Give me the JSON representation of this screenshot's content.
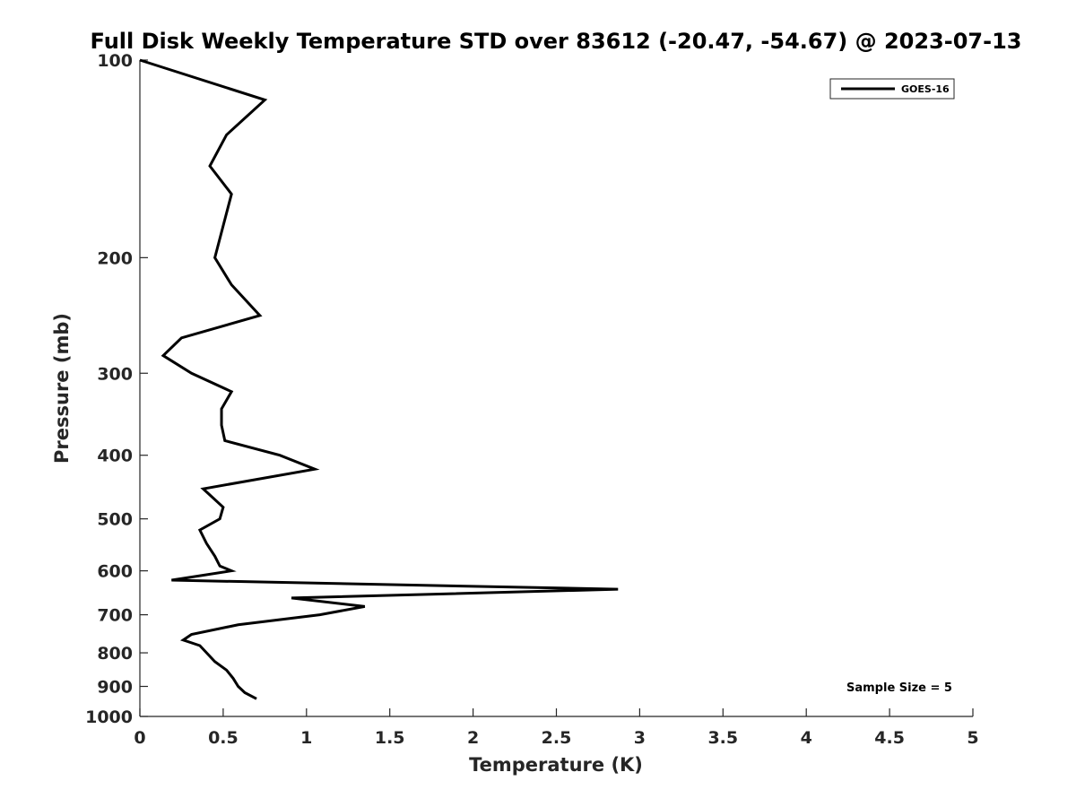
{
  "chart_data": {
    "type": "line",
    "title": "Full Disk Weekly Temperature STD over 83612 (-20.47, -54.67) @ 2023-07-13",
    "xlabel": "Temperature (K)",
    "ylabel": "Pressure (mb)",
    "xlim": [
      0,
      5
    ],
    "ylim": [
      100,
      1000
    ],
    "y_scale": "log",
    "y_reversed": true,
    "grid": false,
    "legend_position": "top-right",
    "x_ticks": [
      {
        "value": 0,
        "label": "0"
      },
      {
        "value": 0.5,
        "label": "0.5"
      },
      {
        "value": 1,
        "label": "1"
      },
      {
        "value": 1.5,
        "label": "1.5"
      },
      {
        "value": 2,
        "label": "2"
      },
      {
        "value": 2.5,
        "label": "2.5"
      },
      {
        "value": 3,
        "label": "3"
      },
      {
        "value": 3.5,
        "label": "3.5"
      },
      {
        "value": 4,
        "label": "4"
      },
      {
        "value": 4.5,
        "label": "4.5"
      },
      {
        "value": 5,
        "label": "5"
      }
    ],
    "y_ticks": [
      {
        "value": 100,
        "label": "100"
      },
      {
        "value": 200,
        "label": "200"
      },
      {
        "value": 300,
        "label": "300"
      },
      {
        "value": 400,
        "label": "400"
      },
      {
        "value": 500,
        "label": "500"
      },
      {
        "value": 600,
        "label": "600"
      },
      {
        "value": 700,
        "label": "700"
      },
      {
        "value": 800,
        "label": "800"
      },
      {
        "value": 900,
        "label": "900"
      },
      {
        "value": 1000,
        "label": "1000"
      }
    ],
    "series": [
      {
        "name": "GOES-16",
        "color": "#000000",
        "points": [
          {
            "x": 0.0,
            "y": 100
          },
          {
            "x": 0.75,
            "y": 115
          },
          {
            "x": 0.52,
            "y": 130
          },
          {
            "x": 0.42,
            "y": 145
          },
          {
            "x": 0.55,
            "y": 160
          },
          {
            "x": 0.45,
            "y": 200
          },
          {
            "x": 0.55,
            "y": 220
          },
          {
            "x": 0.72,
            "y": 245
          },
          {
            "x": 0.25,
            "y": 265
          },
          {
            "x": 0.14,
            "y": 282
          },
          {
            "x": 0.31,
            "y": 300
          },
          {
            "x": 0.55,
            "y": 320
          },
          {
            "x": 0.49,
            "y": 340
          },
          {
            "x": 0.49,
            "y": 360
          },
          {
            "x": 0.51,
            "y": 380
          },
          {
            "x": 0.84,
            "y": 400
          },
          {
            "x": 1.05,
            "y": 420
          },
          {
            "x": 0.38,
            "y": 450
          },
          {
            "x": 0.5,
            "y": 480
          },
          {
            "x": 0.48,
            "y": 500
          },
          {
            "x": 0.36,
            "y": 520
          },
          {
            "x": 0.4,
            "y": 545
          },
          {
            "x": 0.45,
            "y": 570
          },
          {
            "x": 0.48,
            "y": 590
          },
          {
            "x": 0.55,
            "y": 600
          },
          {
            "x": 0.19,
            "y": 620
          },
          {
            "x": 2.87,
            "y": 640
          },
          {
            "x": 0.91,
            "y": 660
          },
          {
            "x": 1.35,
            "y": 680
          },
          {
            "x": 1.08,
            "y": 700
          },
          {
            "x": 0.59,
            "y": 725
          },
          {
            "x": 0.31,
            "y": 750
          },
          {
            "x": 0.26,
            "y": 765
          },
          {
            "x": 0.36,
            "y": 780
          },
          {
            "x": 0.45,
            "y": 825
          },
          {
            "x": 0.52,
            "y": 850
          },
          {
            "x": 0.56,
            "y": 875
          },
          {
            "x": 0.59,
            "y": 900
          },
          {
            "x": 0.63,
            "y": 920
          },
          {
            "x": 0.7,
            "y": 940
          }
        ]
      }
    ],
    "annotations": [
      {
        "text": "Sample Size = 5"
      }
    ]
  }
}
